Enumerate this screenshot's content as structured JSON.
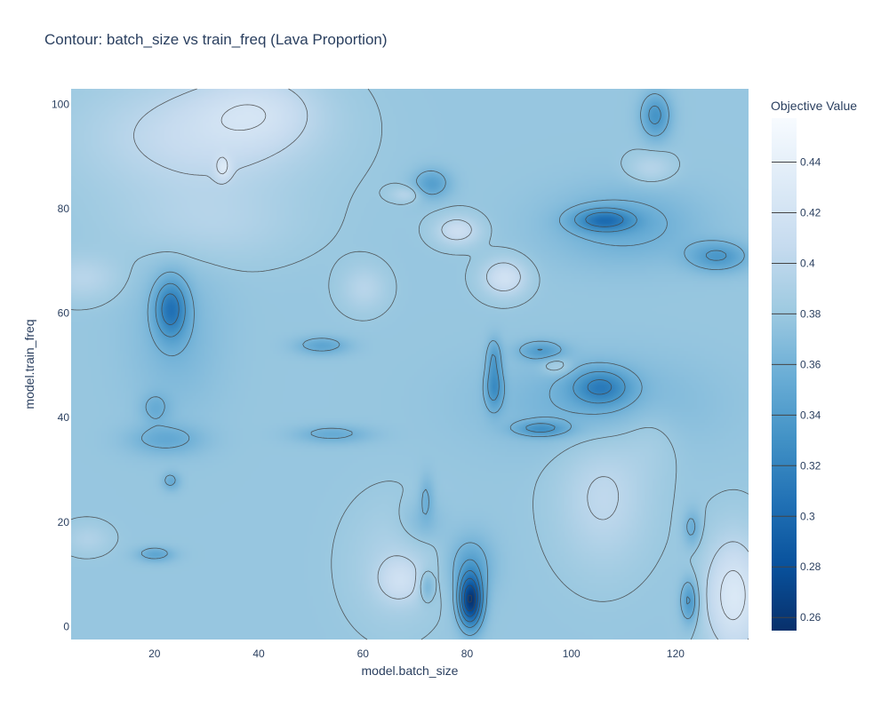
{
  "chart_data": {
    "type": "heatmap",
    "subtype": "contour",
    "title": "Contour: batch_size vs train_freq (Lava Proportion)",
    "xlabel": "model.batch_size",
    "ylabel": "model.train_freq",
    "xlim": [
      4,
      134
    ],
    "ylim": [
      -2.5,
      103
    ],
    "xticks": [
      20,
      40,
      60,
      80,
      100,
      120
    ],
    "yticks": [
      0,
      20,
      40,
      60,
      80,
      100
    ],
    "grid": false,
    "colorbar": {
      "title": "Objective Value",
      "range": [
        0.2548,
        0.4574
      ],
      "ticks": [
        0.26,
        0.28,
        0.3,
        0.32,
        0.34,
        0.36,
        0.38,
        0.4,
        0.42,
        0.44
      ],
      "tick_labels": [
        "0.26",
        "0.28",
        "0.3",
        "0.32",
        "0.34",
        "0.36",
        "0.38",
        "0.4",
        "0.42",
        "0.44"
      ],
      "colors": [
        "#08306b",
        "#08519c",
        "#2171b5",
        "#4292c6",
        "#6baed6",
        "#9ecae1",
        "#c6dbef",
        "#deebf7",
        "#f7fbff"
      ]
    },
    "baseline": 0.378,
    "features": [
      {
        "x": 80.5,
        "y": 5,
        "sx": 1.6,
        "sy": 3.5,
        "a": -0.115
      },
      {
        "x": 80.5,
        "y": 12,
        "sx": 3,
        "sy": 4,
        "a": -0.03
      },
      {
        "x": 23,
        "y": 61,
        "sx": 2.2,
        "sy": 4,
        "a": -0.06
      },
      {
        "x": 24,
        "y": 56,
        "sx": 6,
        "sy": 10,
        "a": -0.015
      },
      {
        "x": 106,
        "y": 78,
        "sx": 4,
        "sy": 1.5,
        "a": -0.055
      },
      {
        "x": 110,
        "y": 77,
        "sx": 10,
        "sy": 5,
        "a": -0.025
      },
      {
        "x": 105.5,
        "y": 46,
        "sx": 4,
        "sy": 2.5,
        "a": -0.05
      },
      {
        "x": 104,
        "y": 43,
        "sx": 14,
        "sy": 6,
        "a": -0.02
      },
      {
        "x": 94,
        "y": 38,
        "sx": 3.5,
        "sy": 1,
        "a": -0.04
      },
      {
        "x": 94,
        "y": 53,
        "sx": 3,
        "sy": 1.3,
        "a": -0.035
      },
      {
        "x": 85,
        "y": 46,
        "sx": 1.2,
        "sy": 3,
        "a": -0.045
      },
      {
        "x": 85,
        "y": 52,
        "sx": 1,
        "sy": 2.5,
        "a": -0.03
      },
      {
        "x": 116,
        "y": 98,
        "sx": 2,
        "sy": 3,
        "a": -0.045
      },
      {
        "x": 128,
        "y": 71,
        "sx": 4,
        "sy": 2,
        "a": -0.04
      },
      {
        "x": 73,
        "y": 85,
        "sx": 2.5,
        "sy": 2,
        "a": -0.035
      },
      {
        "x": 54,
        "y": 37,
        "sx": 5,
        "sy": 1.2,
        "a": -0.025
      },
      {
        "x": 52,
        "y": 54,
        "sx": 3.5,
        "sy": 1.2,
        "a": -0.03
      },
      {
        "x": 22,
        "y": 36,
        "sx": 5,
        "sy": 2,
        "a": -0.025
      },
      {
        "x": 20,
        "y": 42,
        "sx": 2,
        "sy": 2,
        "a": -0.02
      },
      {
        "x": 20,
        "y": 14,
        "sx": 2.5,
        "sy": 1,
        "a": -0.03
      },
      {
        "x": 23,
        "y": 28,
        "sx": 1.2,
        "sy": 1.2,
        "a": -0.025
      },
      {
        "x": 122.5,
        "y": 5,
        "sx": 1.2,
        "sy": 3,
        "a": -0.045
      },
      {
        "x": 123,
        "y": 19,
        "sx": 1.2,
        "sy": 2.5,
        "a": -0.025
      },
      {
        "x": 72,
        "y": 25,
        "sx": 1,
        "sy": 3,
        "a": -0.02
      },
      {
        "x": 72,
        "y": 8,
        "sx": 1,
        "sy": 2,
        "a": -0.025
      },
      {
        "x": 71,
        "y": 20,
        "sx": 3,
        "sy": 3,
        "a": -0.015
      },
      {
        "x": 30,
        "y": 77,
        "sx": 12,
        "sy": 5,
        "a": 0.015
      },
      {
        "x": 28,
        "y": 94,
        "sx": 15,
        "sy": 8,
        "a": 0.03
      },
      {
        "x": 40,
        "y": 99,
        "sx": 8,
        "sy": 5,
        "a": 0.025
      },
      {
        "x": 78,
        "y": 76,
        "sx": 3,
        "sy": 2,
        "a": 0.035
      },
      {
        "x": 87,
        "y": 67,
        "sx": 3,
        "sy": 2.5,
        "a": 0.04
      },
      {
        "x": 97,
        "y": 50,
        "sx": 2,
        "sy": 1.2,
        "a": 0.02
      },
      {
        "x": 67,
        "y": 9,
        "sx": 3,
        "sy": 3,
        "a": 0.025
      },
      {
        "x": 66,
        "y": 12,
        "sx": 6,
        "sy": 8,
        "a": 0.015
      },
      {
        "x": 106,
        "y": 25,
        "sx": 6,
        "sy": 9,
        "a": 0.025
      },
      {
        "x": 131,
        "y": 6,
        "sx": 4,
        "sy": 8,
        "a": 0.05
      },
      {
        "x": 6,
        "y": 67,
        "sx": 5,
        "sy": 3,
        "a": 0.02
      },
      {
        "x": 60,
        "y": 65,
        "sx": 3,
        "sy": 3,
        "a": 0.02
      },
      {
        "x": 115,
        "y": 88,
        "sx": 3,
        "sy": 2,
        "a": 0.02
      },
      {
        "x": 7,
        "y": 17,
        "sx": 3,
        "sy": 2,
        "a": 0.015
      },
      {
        "x": 33,
        "y": 88,
        "sx": 1,
        "sy": 1.5,
        "a": 0.03
      },
      {
        "x": 68,
        "y": 83,
        "sx": 2,
        "sy": 1,
        "a": 0.02
      },
      {
        "x": 115,
        "y": 37,
        "sx": 4,
        "sy": 5,
        "a": 0.01
      }
    ]
  }
}
